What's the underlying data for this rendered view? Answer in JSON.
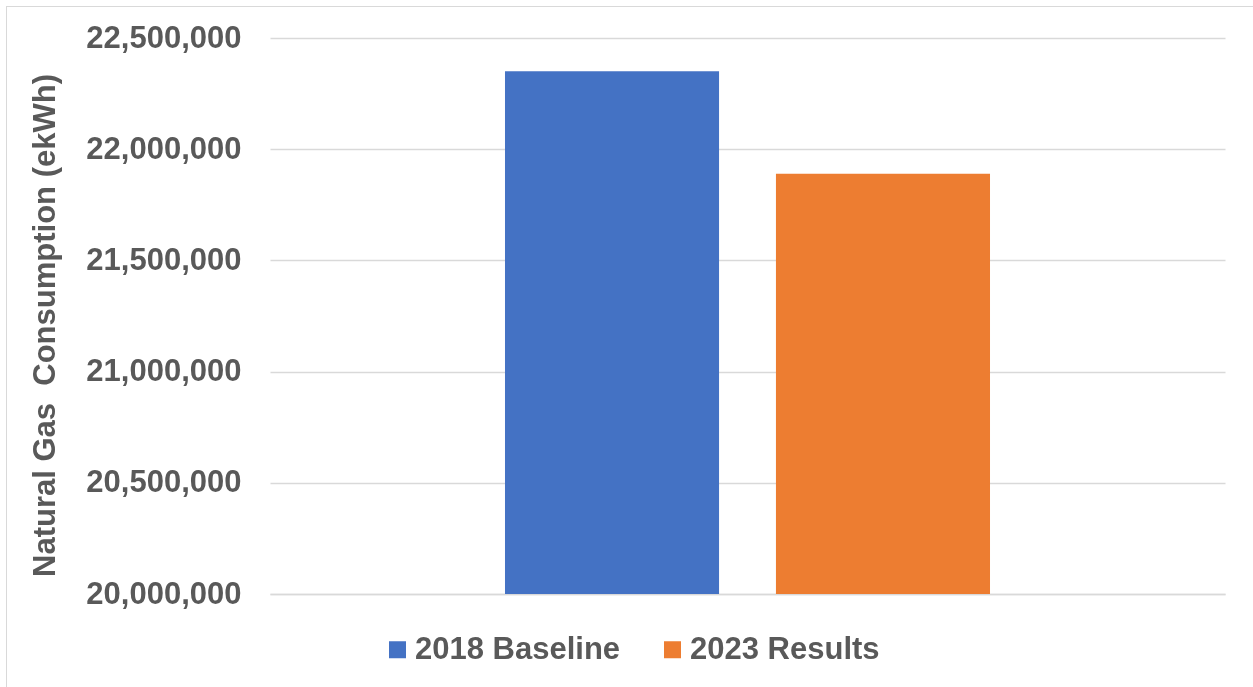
{
  "chart_data": {
    "type": "bar",
    "ylabel": "Natural Gas  Consumption (ekWh)",
    "categories": [
      null
    ],
    "series": [
      {
        "name": "2018 Baseline",
        "color": "#4472c4",
        "values": [
          22350000
        ]
      },
      {
        "name": "2023 Results",
        "color": "#ed7d31",
        "values": [
          21890000
        ]
      }
    ],
    "ylim": [
      20000000,
      22500000
    ],
    "yticks": [
      {
        "value": 20000000,
        "label": "20,000,000"
      },
      {
        "value": 20500000,
        "label": "20,500,000"
      },
      {
        "value": 21000000,
        "label": "21,000,000"
      },
      {
        "value": 21500000,
        "label": "21,500,000"
      },
      {
        "value": 22000000,
        "label": "22,000,000"
      },
      {
        "value": 22500000,
        "label": "22,500,000"
      }
    ],
    "grid": "y",
    "legend": "bottom"
  }
}
